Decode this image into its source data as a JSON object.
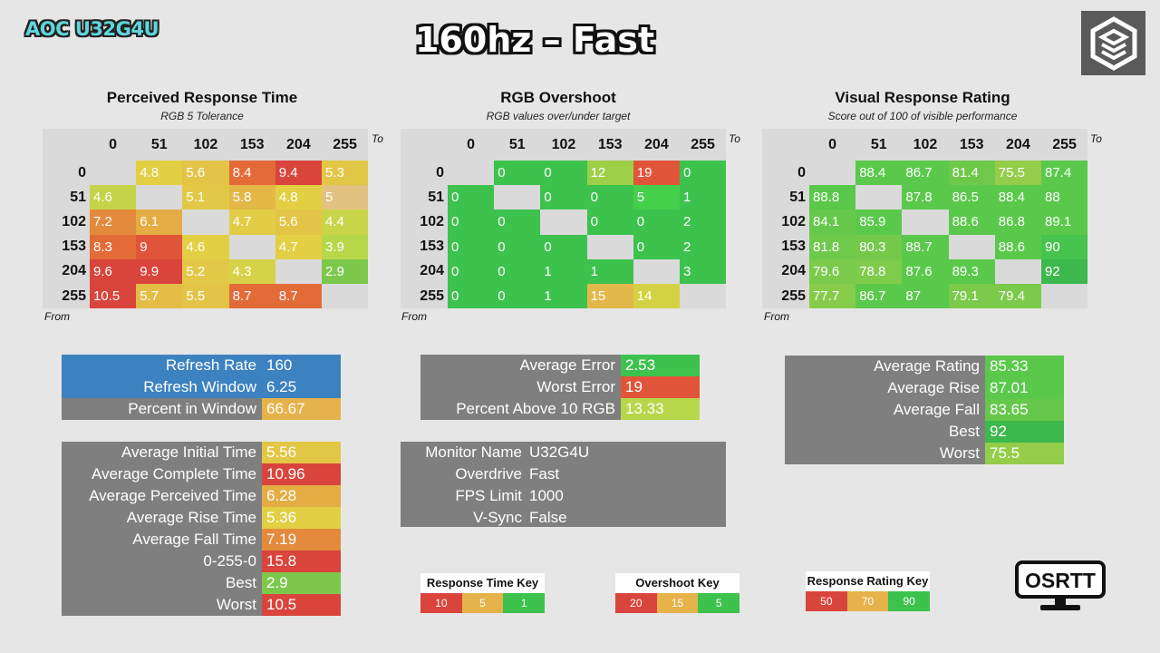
{
  "header": {
    "monitor_tag": "AOC U32G4U",
    "title": "160hz – Fast"
  },
  "labels": {
    "to": "To",
    "from": "From"
  },
  "colors": {
    "red": "#d9443c",
    "orange": "#e07a3a",
    "amber": "#e6b24a",
    "yellow": "#e2cf44",
    "lime": "#b7d74a",
    "green": "#3cc24d",
    "grey_cell": "#dadada",
    "blue": "#3c82c0",
    "panel_grey": "#7f7f7f"
  },
  "chart_data": [
    {
      "type": "heatmap",
      "title": "Perceived Response Time",
      "subtitle": "RGB 5 Tolerance",
      "columns": [
        "0",
        "51",
        "102",
        "153",
        "204",
        "255"
      ],
      "rows": [
        "0",
        "51",
        "102",
        "153",
        "204",
        "255"
      ],
      "cells": [
        [
          null,
          "4.8",
          "5.6",
          "8.4",
          "9.4",
          "5.3"
        ],
        [
          "4.6",
          null,
          "5.1",
          "5.8",
          "4.8",
          "5"
        ],
        [
          "7.2",
          "6.1",
          null,
          "4.7",
          "5.6",
          "4.4"
        ],
        [
          "8.3",
          "9",
          "4.6",
          null,
          "4.7",
          "3.9"
        ],
        [
          "9.6",
          "9.9",
          "5.2",
          "4.3",
          null,
          "2.9"
        ],
        [
          "10.5",
          "5.7",
          "5.5",
          "8.7",
          "8.7",
          null
        ]
      ],
      "cell_colors": [
        [
          null,
          "#e2cf44",
          "#e3c447",
          "#e36b38",
          "#d9443c",
          "#e2c646"
        ],
        [
          "#c3d44a",
          null,
          "#e2c846",
          "#e3b847",
          "#e2cf44",
          "#e2c280"
        ],
        [
          "#e38a3d",
          "#e3ad44",
          null,
          "#e2cc46",
          "#e3c447",
          "#c9d548"
        ],
        [
          "#e36b38",
          "#e0553a",
          "#e2cf44",
          null,
          "#e2cf44",
          "#b7d74a"
        ],
        [
          "#d9443c",
          "#d9443c",
          "#e2c846",
          "#d6d247",
          null,
          "#7cc84c"
        ],
        [
          "#d9443c",
          "#e3bd45",
          "#e3c447",
          "#e36b38",
          "#e36b38",
          null
        ]
      ]
    },
    {
      "type": "heatmap",
      "title": "RGB Overshoot",
      "subtitle": "RGB values over/under target",
      "columns": [
        "0",
        "51",
        "102",
        "153",
        "204",
        "255"
      ],
      "rows": [
        "0",
        "51",
        "102",
        "153",
        "204",
        "255"
      ],
      "cells": [
        [
          null,
          "0",
          "0",
          "12",
          "19",
          "0"
        ],
        [
          "0",
          null,
          "0",
          "0",
          "5",
          "1"
        ],
        [
          "0",
          "0",
          null,
          "0",
          "0",
          "2"
        ],
        [
          "0",
          "0",
          "0",
          null,
          "0",
          "2"
        ],
        [
          "0",
          "0",
          "1",
          "1",
          null,
          "3"
        ],
        [
          "0",
          "0",
          "1",
          "15",
          "14",
          null
        ]
      ],
      "cell_colors": [
        [
          null,
          "#3cc24d",
          "#3cc24d",
          "#9dcf48",
          "#e0553a",
          "#3cc24d"
        ],
        [
          "#3cc24d",
          null,
          "#3cc24d",
          "#3cc24d",
          "#44cf4d",
          "#3cc24d"
        ],
        [
          "#3cc24d",
          "#3cc24d",
          null,
          "#3cc24d",
          "#3cc24d",
          "#3cc24d"
        ],
        [
          "#3cc24d",
          "#3cc24d",
          "#3cc24d",
          null,
          "#3cc24d",
          "#3cc24d"
        ],
        [
          "#3cc24d",
          "#3cc24d",
          "#3cc24d",
          "#3cc24d",
          null,
          "#3cc24d"
        ],
        [
          "#3cc24d",
          "#3cc24d",
          "#3cc24d",
          "#e3b84a",
          "#d4d244",
          null
        ]
      ]
    },
    {
      "type": "heatmap",
      "title": "Visual Response Rating",
      "subtitle": "Score out of 100 of visible performance",
      "columns": [
        "0",
        "51",
        "102",
        "153",
        "204",
        "255"
      ],
      "rows": [
        "0",
        "51",
        "102",
        "153",
        "204",
        "255"
      ],
      "cells": [
        [
          null,
          "88.4",
          "86.7",
          "81.4",
          "75.5",
          "87.4"
        ],
        [
          "88.8",
          null,
          "87.8",
          "86.5",
          "88.4",
          "88"
        ],
        [
          "84.1",
          "85.9",
          null,
          "88.6",
          "86.8",
          "89.1"
        ],
        [
          "81.8",
          "80.3",
          "88.7",
          null,
          "88.6",
          "90"
        ],
        [
          "79.6",
          "78.8",
          "87.6",
          "89.3",
          null,
          "92"
        ],
        [
          "77.7",
          "86.7",
          "87",
          "79.1",
          "79.4",
          null
        ]
      ],
      "cell_colors": [
        [
          null,
          "#5ac94b",
          "#5ac94b",
          "#6ec94b",
          "#93cd49",
          "#5ac94b"
        ],
        [
          "#5ac94b",
          null,
          "#5ac94b",
          "#5ac94b",
          "#5ac94b",
          "#5ac94b"
        ],
        [
          "#66c84b",
          "#5ac94b",
          null,
          "#5ac94b",
          "#5ac94b",
          "#5ac94b"
        ],
        [
          "#6ec94b",
          "#74c94b",
          "#5ac94b",
          null,
          "#5ac94b",
          "#46c44d"
        ],
        [
          "#7bca4b",
          "#7fcb4b",
          "#5ac94b",
          "#5ac94b",
          null,
          "#3cb84d"
        ],
        [
          "#86cc4a",
          "#5ac94b",
          "#5ac94b",
          "#7bca4b",
          "#7bca4b",
          null
        ]
      ]
    }
  ],
  "refresh": {
    "rows": [
      {
        "label": "Refresh Rate",
        "value": "160",
        "bg": "#3c82c0",
        "vbg": "#3c82c0"
      },
      {
        "label": "Refresh Window",
        "value": "6.25",
        "bg": "#3c82c0",
        "vbg": "#3c82c0"
      },
      {
        "label": "Percent in Window",
        "value": "66.67",
        "bg": "#7f7f7f",
        "vbg": "#e6b24a"
      }
    ]
  },
  "response_stats": {
    "rows": [
      {
        "label": "Average Initial Time",
        "value": "5.56",
        "vbg": "#e2c646"
      },
      {
        "label": "Average Complete Time",
        "value": "10.96",
        "vbg": "#d9443c"
      },
      {
        "label": "Average Perceived Time",
        "value": "6.28",
        "vbg": "#e3ad44"
      },
      {
        "label": "Average Rise Time",
        "value": "5.36",
        "vbg": "#e2cf44"
      },
      {
        "label": "Average Fall Time",
        "value": "7.19",
        "vbg": "#e38a3d"
      },
      {
        "label": "0-255-0",
        "value": "15.8",
        "vbg": "#d9443c"
      },
      {
        "label": "Best",
        "value": "2.9",
        "vbg": "#7cc84c"
      },
      {
        "label": "Worst",
        "value": "10.5",
        "vbg": "#d9443c"
      }
    ]
  },
  "overshoot_stats": {
    "rows": [
      {
        "label": "Average Error",
        "value": "2.53",
        "vbg": "#3cc24d"
      },
      {
        "label": "Worst Error",
        "value": "19",
        "vbg": "#e0553a"
      },
      {
        "label": "Percent Above 10 RGB",
        "value": "13.33",
        "vbg": "#b7d74a"
      }
    ]
  },
  "monitor_info": {
    "rows": [
      {
        "label": "Monitor Name",
        "value": "U32G4U"
      },
      {
        "label": "Overdrive",
        "value": "Fast"
      },
      {
        "label": "FPS Limit",
        "value": "1000"
      },
      {
        "label": "V-Sync",
        "value": "False"
      }
    ]
  },
  "rating_stats": {
    "rows": [
      {
        "label": "Average Rating",
        "value": "85.33",
        "vbg": "#5ac94b"
      },
      {
        "label": "Average Rise",
        "value": "87.01",
        "vbg": "#5ac94b"
      },
      {
        "label": "Average Fall",
        "value": "83.65",
        "vbg": "#66c84b"
      },
      {
        "label": "Best",
        "value": "92",
        "vbg": "#3cb84d"
      },
      {
        "label": "Worst",
        "value": "75.5",
        "vbg": "#93cd49"
      }
    ]
  },
  "keys": [
    {
      "title": "Response Time Key",
      "cells": [
        {
          "label": "10",
          "color": "#d9443c"
        },
        {
          "label": "5",
          "color": "#e6b24a"
        },
        {
          "label": "1",
          "color": "#3cc24d"
        }
      ]
    },
    {
      "title": "Overshoot Key",
      "cells": [
        {
          "label": "20",
          "color": "#d9443c"
        },
        {
          "label": "15",
          "color": "#e6b24a"
        },
        {
          "label": "5",
          "color": "#3cc24d"
        }
      ]
    },
    {
      "title": "Response Rating Key",
      "cells": [
        {
          "label": "50",
          "color": "#d9443c"
        },
        {
          "label": "70",
          "color": "#e6b24a"
        },
        {
          "label": "90",
          "color": "#3cc24d"
        }
      ]
    }
  ],
  "brand": {
    "logo_icon": "hexagon-layers-icon",
    "osrtt_text": "OSRTT"
  }
}
